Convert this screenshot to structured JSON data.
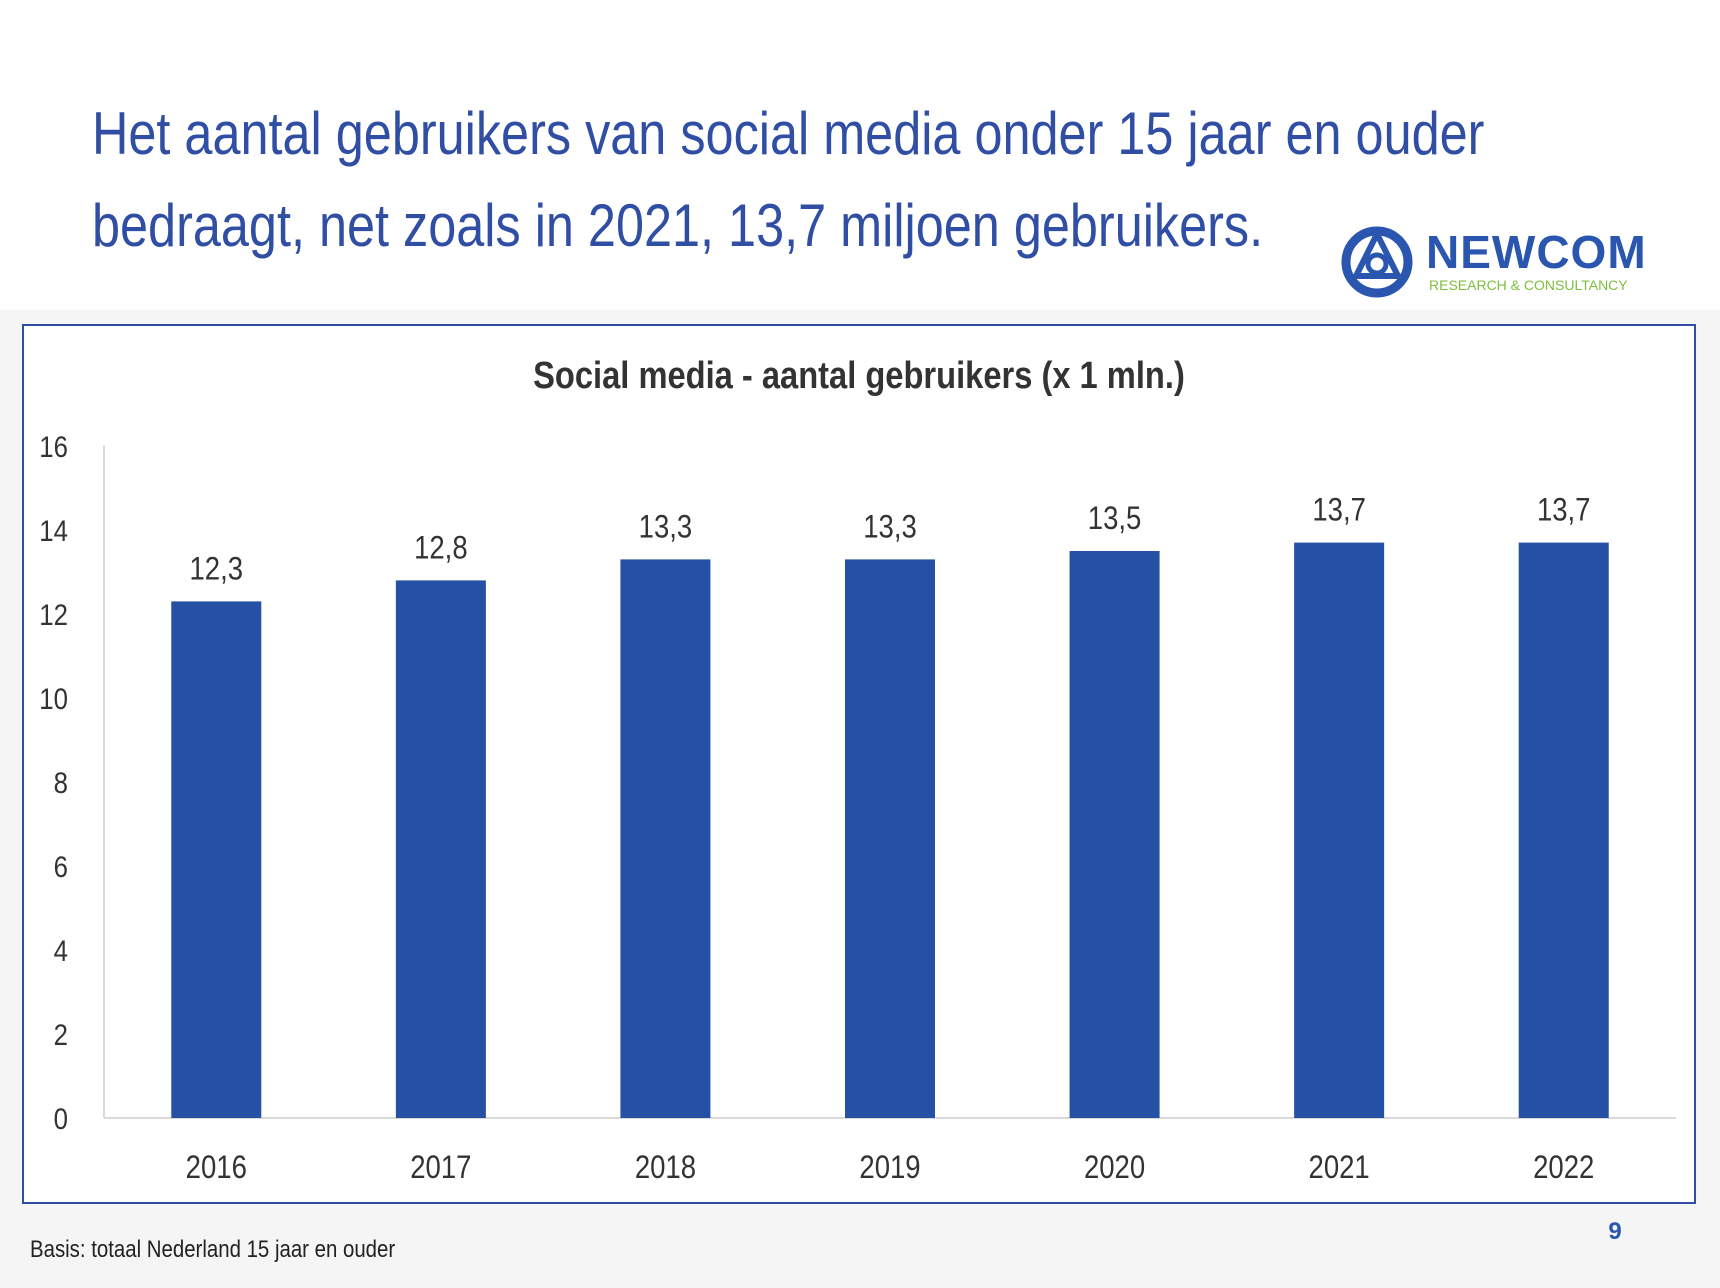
{
  "slide": {
    "title_lines": [
      "Het aantal gebruikers van social media onder 15 jaar en ouder",
      "bedraagt, net zoals in 2021, 13,7 miljoen gebruikers."
    ],
    "footnote": "Basis: totaal Nederland 15 jaar en ouder",
    "page_number": "9"
  },
  "logo": {
    "name": "NEWCOM",
    "subtitle": "RESEARCH & CONSULTANCY",
    "icon": "newcom-logo-icon",
    "colors": {
      "primary": "#2a56b0",
      "secondary": "#7fbf3e"
    }
  },
  "colors": {
    "title": "#2f4ea4",
    "bar": "#2550a3",
    "frame": "#2f4ea4"
  },
  "chart_data": {
    "type": "bar",
    "title": "Social media - aantal gebruikers (x 1 mln.)",
    "categories": [
      "2016",
      "2017",
      "2018",
      "2019",
      "2020",
      "2021",
      "2022"
    ],
    "values": [
      12.3,
      12.8,
      13.3,
      13.3,
      13.5,
      13.7,
      13.7
    ],
    "data_labels": [
      "12,3",
      "12,8",
      "13,3",
      "13,3",
      "13,5",
      "13,7",
      "13,7"
    ],
    "xlabel": "",
    "ylabel": "",
    "ylim": [
      0,
      16
    ],
    "yticks": [
      0,
      2,
      4,
      6,
      8,
      10,
      12,
      14,
      16
    ],
    "grid": false,
    "legend": "none"
  }
}
